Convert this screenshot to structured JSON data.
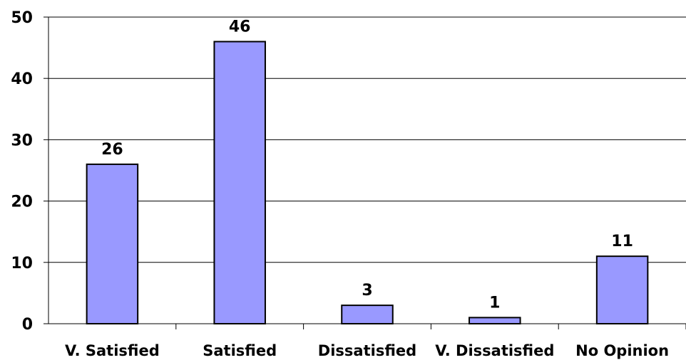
{
  "chart_data": {
    "type": "bar",
    "title": "",
    "xlabel": "",
    "ylabel": "",
    "categories": [
      "V. Satisfied",
      "Satisfied",
      "Dissatisfied",
      "V. Dissatisfied",
      "No Opinion"
    ],
    "values": [
      26,
      46,
      3,
      1,
      11
    ],
    "ylim": [
      0,
      50
    ],
    "yticks": [
      "0",
      "10",
      "20",
      "30",
      "40",
      "50"
    ],
    "data_labels": [
      "26",
      "46",
      "3",
      "1",
      "11"
    ],
    "grid": true,
    "legend": "none",
    "colors": {
      "bar_fill": "#9999ff",
      "bar_stroke": "#000000",
      "gridline": "#000000",
      "axis": "#000000"
    }
  }
}
